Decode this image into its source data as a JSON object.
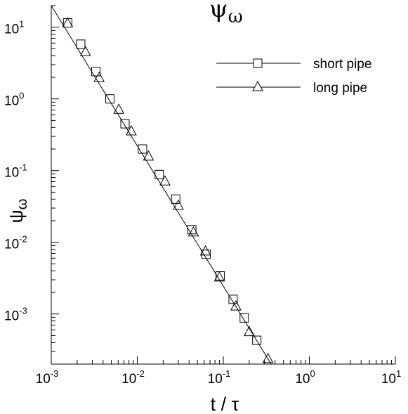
{
  "chart_data": {
    "type": "scatter",
    "title": "ψ",
    "title_subscript": "ω",
    "xlabel": "t / τ",
    "ylabel": "ψ",
    "ylabel_subscript": "ω",
    "x_scale": "log",
    "y_scale": "log",
    "xlim": [
      0.001,
      10
    ],
    "ylim": [
      0.0002,
      20
    ],
    "x_ticks": [
      {
        "base": "10",
        "exp": "-3",
        "value": 0.001
      },
      {
        "base": "10",
        "exp": "-2",
        "value": 0.01
      },
      {
        "base": "10",
        "exp": "-1",
        "value": 0.1
      },
      {
        "base": "10",
        "exp": "0",
        "value": 1
      },
      {
        "base": "10",
        "exp": "1",
        "value": 10
      }
    ],
    "y_ticks": [
      {
        "base": "10",
        "exp": "-3",
        "value": 0.001
      },
      {
        "base": "10",
        "exp": "-2",
        "value": 0.01
      },
      {
        "base": "10",
        "exp": "-1",
        "value": 0.1
      },
      {
        "base": "10",
        "exp": "0",
        "value": 1
      },
      {
        "base": "10",
        "exp": "1",
        "value": 10
      }
    ],
    "grid": false,
    "legend_position": "top-right",
    "fit_line": {
      "x": [
        0.001,
        0.36
      ],
      "y": [
        20,
        0.0002
      ]
    },
    "series": [
      {
        "name": "short pipe",
        "marker": "square",
        "x": [
          0.00155,
          0.0022,
          0.0033,
          0.0048,
          0.0072,
          0.0115,
          0.018,
          0.028,
          0.043,
          0.063,
          0.092,
          0.13,
          0.175,
          0.245
        ],
        "y": [
          11.5,
          5.8,
          2.4,
          1.0,
          0.45,
          0.2,
          0.088,
          0.04,
          0.015,
          0.0068,
          0.0034,
          0.0016,
          0.00088,
          0.00043
        ]
      },
      {
        "name": "long pipe",
        "marker": "triangle",
        "x": [
          0.00155,
          0.0025,
          0.0036,
          0.0061,
          0.0085,
          0.0135,
          0.021,
          0.03,
          0.045,
          0.062,
          0.09,
          0.14,
          0.2,
          0.33
        ],
        "y": [
          11.5,
          4.6,
          2.0,
          0.72,
          0.36,
          0.16,
          0.072,
          0.033,
          0.014,
          0.0076,
          0.0033,
          0.0013,
          0.00057,
          0.00024
        ]
      }
    ]
  }
}
